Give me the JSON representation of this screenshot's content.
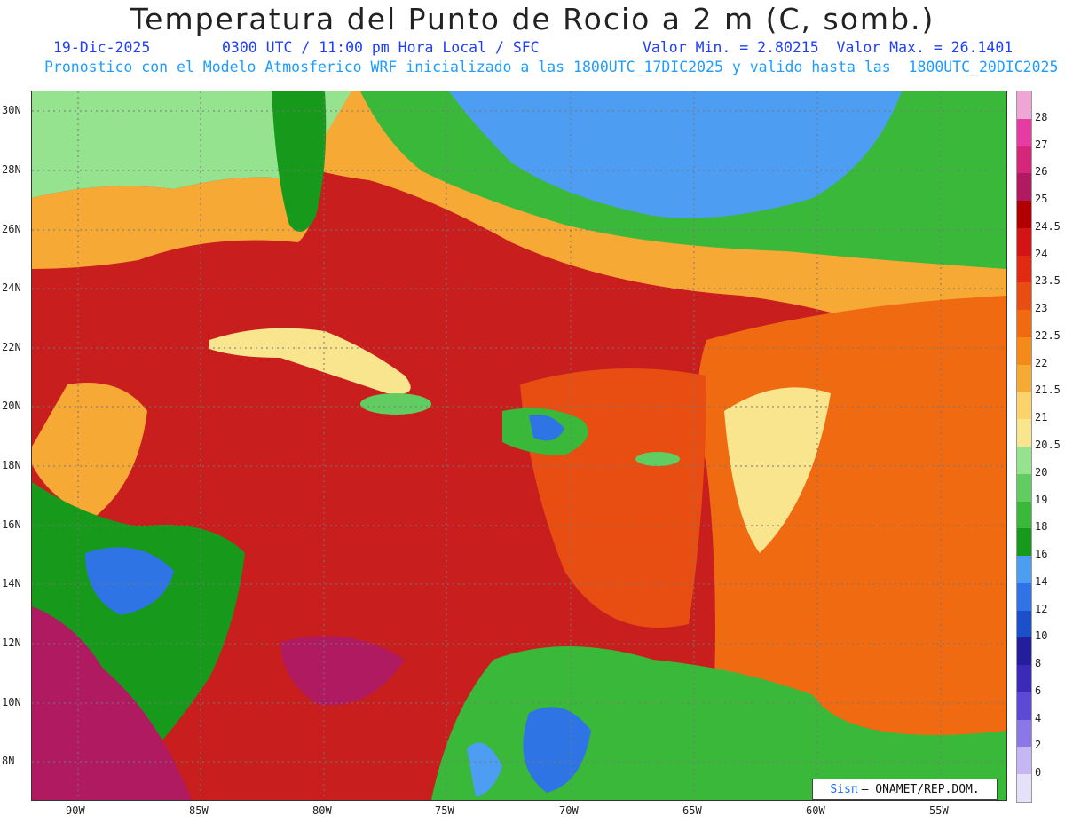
{
  "header": {
    "title": "Temperatura del Punto de Rocio a 2 m (C, somb.)",
    "date": "19-Dic-2025",
    "time": "0300 UTC / 11:00 pm Hora Local / SFC",
    "minmax": "Valor Min. = 2.80215  Valor Max. = 26.1401",
    "subtitle2": "Pronostico con el Modelo Atmosferico WRF inicializado a las 1800UTC_17DIC2025 y valido hasta las  1800UTC_20DIC2025"
  },
  "map": {
    "lat_labels": [
      "30N",
      "28N",
      "26N",
      "24N",
      "22N",
      "20N",
      "18N",
      "16N",
      "14N",
      "12N",
      "10N",
      "8N"
    ],
    "lon_labels": [
      "90W",
      "85W",
      "80W",
      "75W",
      "70W",
      "65W",
      "60W",
      "55W"
    ],
    "colorbar": {
      "labels": [
        "28",
        "27",
        "26",
        "25",
        "24.5",
        "24",
        "23.5",
        "23",
        "22.5",
        "22",
        "21.5",
        "21",
        "20.5",
        "20",
        "19",
        "18",
        "16",
        "14",
        "12",
        "10",
        "8",
        "6",
        "4",
        "2",
        "0"
      ],
      "colors": [
        "#f0a6d4",
        "#e53ba3",
        "#d4267a",
        "#b01a60",
        "#b00000",
        "#d21414",
        "#e02a12",
        "#e84d12",
        "#f06a12",
        "#f58a1a",
        "#f7a935",
        "#fbd36a",
        "#f9e58d",
        "#95e28f",
        "#61cc61",
        "#39b83a",
        "#179a1c",
        "#4d9ef3",
        "#2f74e5",
        "#1c50c8",
        "#221e9c",
        "#3b2ab8",
        "#5d4ad4",
        "#8c77e8",
        "#c6b6f3",
        "#e4e1f8"
      ],
      "values": [
        28,
        27,
        26,
        25,
        24.5,
        24,
        23.5,
        23,
        22.5,
        22,
        21.5,
        21,
        20.5,
        20,
        19,
        18,
        16,
        14,
        12,
        10,
        8,
        6,
        4,
        2,
        0
      ]
    },
    "logo": {
      "brand": "Sisπ",
      "text": "– ONAMET/REP.DOM."
    }
  }
}
